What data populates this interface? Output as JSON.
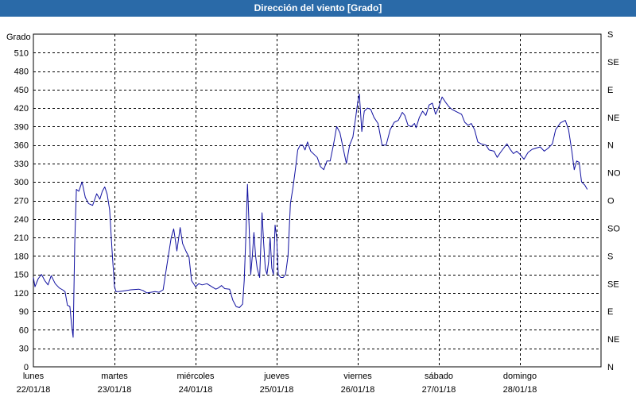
{
  "title": "Dirección del viento [Grado]",
  "colors": {
    "title_bg": "#2a6aa8",
    "line": "#1010a0",
    "grid": "#000000"
  },
  "chart_data": {
    "type": "line",
    "title": "Dirección del viento [Grado]",
    "ylabel": "Grado",
    "ylim": [
      0,
      540
    ],
    "yticks": [
      0,
      30,
      60,
      90,
      120,
      150,
      180,
      210,
      240,
      270,
      300,
      330,
      360,
      390,
      420,
      450,
      480,
      510
    ],
    "right_axis_labels": [
      "N",
      "NE",
      "E",
      "SE",
      "S",
      "SO",
      "O",
      "NO",
      "N",
      "NE",
      "E",
      "SE",
      "S"
    ],
    "right_axis_values": [
      0,
      45,
      90,
      135,
      180,
      225,
      270,
      315,
      360,
      405,
      450,
      495,
      540
    ],
    "x_unit": "days",
    "xlim": [
      0,
      7
    ],
    "day_labels": [
      {
        "day": "lunes",
        "date": "22/01/18"
      },
      {
        "day": "martes",
        "date": "23/01/18"
      },
      {
        "day": "miércoles",
        "date": "24/01/18"
      },
      {
        "day": "jueves",
        "date": "25/01/18"
      },
      {
        "day": "viernes",
        "date": "26/01/18"
      },
      {
        "day": "sábado",
        "date": "27/01/18"
      },
      {
        "day": "domingo",
        "date": "28/01/18"
      }
    ],
    "grid": true,
    "series": [
      {
        "points": [
          [
            0.0,
            145
          ],
          [
            0.02,
            130
          ],
          [
            0.06,
            143
          ],
          [
            0.1,
            150
          ],
          [
            0.14,
            140
          ],
          [
            0.18,
            133
          ],
          [
            0.22,
            148
          ],
          [
            0.27,
            135
          ],
          [
            0.32,
            128
          ],
          [
            0.36,
            125
          ],
          [
            0.39,
            122
          ],
          [
            0.42,
            100
          ],
          [
            0.45,
            98
          ],
          [
            0.47,
            70
          ],
          [
            0.48,
            58
          ],
          [
            0.49,
            48
          ],
          [
            0.51,
            200
          ],
          [
            0.53,
            288
          ],
          [
            0.56,
            285
          ],
          [
            0.6,
            300
          ],
          [
            0.64,
            275
          ],
          [
            0.68,
            265
          ],
          [
            0.73,
            262
          ],
          [
            0.78,
            281
          ],
          [
            0.82,
            272
          ],
          [
            0.85,
            285
          ],
          [
            0.88,
            292
          ],
          [
            0.91,
            280
          ],
          [
            0.94,
            255
          ],
          [
            0.97,
            190
          ],
          [
            1.0,
            130
          ],
          [
            1.02,
            122
          ],
          [
            1.05,
            122
          ],
          [
            1.1,
            123
          ],
          [
            1.2,
            125
          ],
          [
            1.3,
            126
          ],
          [
            1.35,
            124
          ],
          [
            1.4,
            120
          ],
          [
            1.45,
            121
          ],
          [
            1.5,
            122
          ],
          [
            1.55,
            121
          ],
          [
            1.6,
            125
          ],
          [
            1.65,
            168
          ],
          [
            1.7,
            210
          ],
          [
            1.73,
            224
          ],
          [
            1.77,
            188
          ],
          [
            1.81,
            226
          ],
          [
            1.84,
            200
          ],
          [
            1.88,
            188
          ],
          [
            1.92,
            178
          ],
          [
            1.95,
            140
          ],
          [
            2.0,
            130
          ],
          [
            2.04,
            135
          ],
          [
            2.08,
            133
          ],
          [
            2.14,
            135
          ],
          [
            2.2,
            130
          ],
          [
            2.25,
            126
          ],
          [
            2.28,
            128
          ],
          [
            2.32,
            132
          ],
          [
            2.36,
            127
          ],
          [
            2.42,
            126
          ],
          [
            2.46,
            108
          ],
          [
            2.5,
            98
          ],
          [
            2.54,
            96
          ],
          [
            2.58,
            102
          ],
          [
            2.6,
            140
          ],
          [
            2.62,
            210
          ],
          [
            2.64,
            296
          ],
          [
            2.66,
            230
          ],
          [
            2.68,
            150
          ],
          [
            2.7,
            180
          ],
          [
            2.72,
            218
          ],
          [
            2.74,
            180
          ],
          [
            2.76,
            160
          ],
          [
            2.79,
            145
          ],
          [
            2.82,
            250
          ],
          [
            2.84,
            200
          ],
          [
            2.86,
            160
          ],
          [
            2.88,
            150
          ],
          [
            2.9,
            170
          ],
          [
            2.92,
            210
          ],
          [
            2.94,
            160
          ],
          [
            2.96,
            150
          ],
          [
            2.98,
            230
          ],
          [
            3.0,
            210
          ],
          [
            3.02,
            150
          ],
          [
            3.05,
            145
          ],
          [
            3.08,
            145
          ],
          [
            3.11,
            150
          ],
          [
            3.14,
            180
          ],
          [
            3.17,
            265
          ],
          [
            3.2,
            290
          ],
          [
            3.23,
            320
          ],
          [
            3.26,
            352
          ],
          [
            3.29,
            360
          ],
          [
            3.32,
            360
          ],
          [
            3.35,
            352
          ],
          [
            3.38,
            365
          ],
          [
            3.42,
            350
          ],
          [
            3.46,
            345
          ],
          [
            3.5,
            340
          ],
          [
            3.54,
            325
          ],
          [
            3.58,
            320
          ],
          [
            3.62,
            334
          ],
          [
            3.66,
            334
          ],
          [
            3.7,
            360
          ],
          [
            3.74,
            390
          ],
          [
            3.78,
            380
          ],
          [
            3.82,
            355
          ],
          [
            3.86,
            330
          ],
          [
            3.9,
            360
          ],
          [
            3.94,
            373
          ],
          [
            3.97,
            400
          ],
          [
            4.0,
            430
          ],
          [
            4.02,
            443
          ],
          [
            4.05,
            382
          ],
          [
            4.08,
            415
          ],
          [
            4.12,
            420
          ],
          [
            4.16,
            418
          ],
          [
            4.2,
            405
          ],
          [
            4.25,
            395
          ],
          [
            4.3,
            360
          ],
          [
            4.35,
            360
          ],
          [
            4.4,
            385
          ],
          [
            4.45,
            397
          ],
          [
            4.5,
            400
          ],
          [
            4.55,
            413
          ],
          [
            4.58,
            408
          ],
          [
            4.62,
            392
          ],
          [
            4.66,
            390
          ],
          [
            4.7,
            395
          ],
          [
            4.72,
            388
          ],
          [
            4.76,
            405
          ],
          [
            4.8,
            415
          ],
          [
            4.84,
            408
          ],
          [
            4.88,
            425
          ],
          [
            4.92,
            428
          ],
          [
            4.96,
            410
          ],
          [
            5.0,
            422
          ],
          [
            5.04,
            438
          ],
          [
            5.08,
            430
          ],
          [
            5.12,
            423
          ],
          [
            5.16,
            418
          ],
          [
            5.22,
            414
          ],
          [
            5.28,
            410
          ],
          [
            5.32,
            397
          ],
          [
            5.36,
            392
          ],
          [
            5.4,
            395
          ],
          [
            5.44,
            385
          ],
          [
            5.48,
            365
          ],
          [
            5.52,
            362
          ],
          [
            5.58,
            360
          ],
          [
            5.62,
            352
          ],
          [
            5.68,
            350
          ],
          [
            5.72,
            340
          ],
          [
            5.76,
            348
          ],
          [
            5.8,
            355
          ],
          [
            5.84,
            362
          ],
          [
            5.88,
            353
          ],
          [
            5.92,
            346
          ],
          [
            5.96,
            350
          ],
          [
            6.0,
            345
          ],
          [
            6.05,
            337
          ],
          [
            6.1,
            348
          ],
          [
            6.15,
            353
          ],
          [
            6.2,
            355
          ],
          [
            6.25,
            357
          ],
          [
            6.3,
            350
          ],
          [
            6.35,
            355
          ],
          [
            6.4,
            362
          ],
          [
            6.44,
            385
          ],
          [
            6.5,
            396
          ],
          [
            6.56,
            400
          ],
          [
            6.6,
            385
          ],
          [
            6.64,
            350
          ],
          [
            6.67,
            320
          ],
          [
            6.7,
            334
          ],
          [
            6.73,
            332
          ],
          [
            6.76,
            300
          ],
          [
            6.8,
            295
          ],
          [
            6.83,
            288
          ]
        ]
      }
    ]
  }
}
